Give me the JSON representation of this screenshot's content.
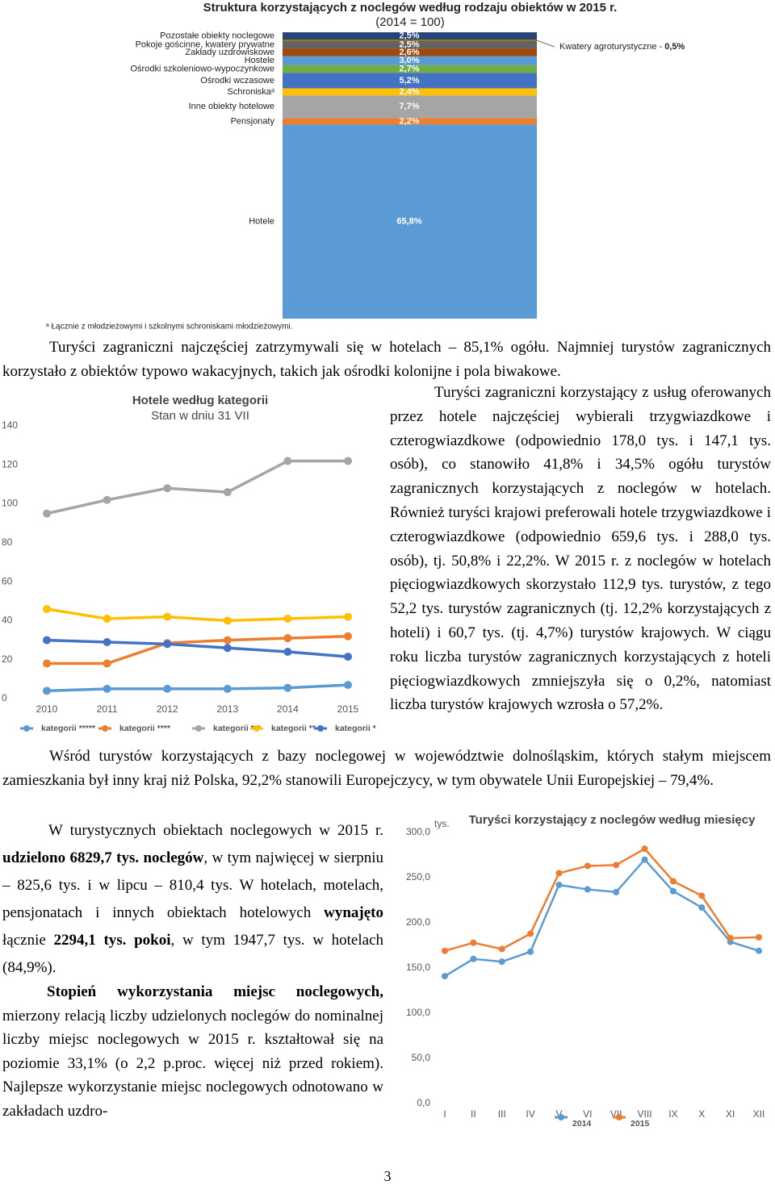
{
  "chart_data": [
    {
      "type": "stacked-bar",
      "title": "Struktura korzystających z noclegów według rodzaju obiektów w 2015 r.",
      "subtitle": "(2014 = 100)",
      "series": [
        {
          "name": "Hotele",
          "color": "#5b9bd5",
          "values": [
            65.8
          ],
          "value_labels": [
            "65,8%"
          ]
        },
        {
          "name": "Pensjonaty",
          "color": "#ed7d31",
          "values": [
            2.2
          ],
          "value_labels": [
            "2,2%"
          ]
        },
        {
          "name": "Inne obiekty hotelowe",
          "color": "#a5a5a5",
          "values": [
            7.7
          ],
          "value_labels": [
            "7,7%"
          ]
        },
        {
          "name": "Schroniskaᵃ",
          "color": "#ffc000",
          "values": [
            2.4
          ],
          "value_labels": [
            "2,4%"
          ]
        },
        {
          "name": "Ośrodki wczasowe",
          "color": "#4472c4",
          "values": [
            5.2
          ],
          "value_labels": [
            "5,2%"
          ]
        },
        {
          "name": "Ośrodki szkoleniowo-wypoczynkowe",
          "color": "#70ad47",
          "values": [
            2.7
          ],
          "value_labels": [
            "2,7%"
          ]
        },
        {
          "name": "Hostele",
          "color": "#5b9bd5",
          "values": [
            3.0
          ],
          "value_labels": [
            "3,0%"
          ]
        },
        {
          "name": "Zakłady uzdrowiskowe",
          "color": "#9e480e",
          "values": [
            2.6
          ],
          "value_labels": [
            "2,6%"
          ]
        },
        {
          "name": "Pokoje gościnne, kwatery prywatne",
          "color": "#636363",
          "values": [
            2.5
          ],
          "value_labels": [
            "2,5%"
          ]
        },
        {
          "name": "Kwatery agroturystyczne",
          "color": "#997300",
          "values": [
            0.5
          ],
          "value_labels": [
            "0,5%"
          ]
        },
        {
          "name": "Pozostałe obiekty noclegowe",
          "color": "#264478",
          "values": [
            2.5
          ],
          "value_labels": [
            "2,5%"
          ]
        }
      ],
      "footnote": "ᵃ Łącznie z młodzieżowymi i szkolnymi schroniskami młodzieżowymi."
    },
    {
      "type": "line",
      "title": "Hotele według kategorii",
      "subtitle": "Stan w dniu 31 VII",
      "categories": [
        "2010",
        "2011",
        "2012",
        "2013",
        "2014",
        "2015"
      ],
      "ylim": [
        0,
        140
      ],
      "yticks": [
        0,
        20,
        40,
        60,
        80,
        100,
        120,
        140
      ],
      "legend": "bottom",
      "series": [
        {
          "name": "kategorii *****",
          "color": "#5b9bd5",
          "values": [
            4,
            5,
            5,
            5,
            5.5,
            7
          ]
        },
        {
          "name": "kategorii ****",
          "color": "#ed7d31",
          "values": [
            18,
            18,
            28.5,
            30,
            31,
            32
          ]
        },
        {
          "name": "kategorii ***",
          "color": "#a5a5a5",
          "values": [
            95,
            102,
            108,
            106,
            122,
            122
          ]
        },
        {
          "name": "kategorii **",
          "color": "#ffc000",
          "values": [
            46,
            41,
            42,
            40,
            41,
            42
          ]
        },
        {
          "name": "kategorii *",
          "color": "#4472c4",
          "values": [
            30,
            29,
            28,
            26,
            24,
            21.5
          ]
        }
      ]
    },
    {
      "type": "line",
      "title": "Turyści korzystający z noclegów według miesięcy",
      "y_label": "tys.",
      "categories": [
        "I",
        "II",
        "III",
        "IV",
        "V",
        "VI",
        "VII",
        "VIII",
        "IX",
        "X",
        "XI",
        "XII"
      ],
      "ylim": [
        0,
        300
      ],
      "legend": "bottom",
      "yticks": [
        {
          "value": 0,
          "label": "0,0"
        },
        {
          "value": 50,
          "label": "50,0"
        },
        {
          "value": 100,
          "label": "100,0"
        },
        {
          "value": 150,
          "label": "150,0"
        },
        {
          "value": 200,
          "label": "200,0"
        },
        {
          "value": 250,
          "label": "250,0"
        },
        {
          "value": 300,
          "label": "300,0"
        }
      ],
      "series": [
        {
          "name": "2014",
          "color": "#5b9bd5",
          "values": [
            141,
            160,
            157,
            168,
            242,
            237,
            234,
            270,
            235,
            217,
            179,
            169
          ]
        },
        {
          "name": "2015",
          "color": "#ed7d31",
          "values": [
            169,
            178,
            171,
            188,
            255,
            263,
            264,
            282,
            246,
            230,
            183,
            184
          ]
        }
      ]
    }
  ],
  "text": {
    "paragraphs": [
      [
        "Turyści zagraniczni najczęściej zatrzymywali się w hotelach – 85,1% ogółu. Najmniej turystów zagranicznych korzystało z obiektów typowo wakacyjnych, takich jak ośrodki kolonijne i pola biwakowe."
      ],
      [
        "Turyści zagraniczni korzystający z usług oferowanych przez hotele najczęściej wybierali trzygwiazdkowe i czterogwiazdkowe (odpowiednio 178,0 tys. i 147,1 tys. osób), co stanowiło 41,8% i 34,5% ogółu turystów zagranicznych korzystających z noclegów w hotelach. Również turyści krajowi preferowali hotele trzygwiazdkowe i czterogwiazdkowe (odpowiednio 659,6 tys. i 288,0 tys. osób), tj. 50,8% i 22,2%. W 2015 r. z noclegów w hotelach pięciogwiazdkowych skorzystało 112,9 tys. turystów, z tego 52,2 tys. turystów zagranicznych (tj. 12,2% korzystających z hoteli) i 60,7 tys. (tj. 4,7%) turystów krajowych. W ciągu roku liczba turystów zagranicznych korzystających z hoteli pięciogwiazdkowych zmniejszyła się o 0,2%, natomiast liczba turystów krajowych wzrosła o 57,2%."
      ],
      [
        "Wśród turystów korzystających z bazy noclegowej w województwie dolnośląskim, których stałym miejscem zamieszkania był inny kraj niż Polska, 92,2% stanowili Europejczycy, w tym obywatele Unii Europejskiej – 79,4%."
      ],
      [
        "W turystycznych obiektach noclegowych w 2015 r. ",
        {
          "bold": "udzielono 6829,7 tys. noclegów"
        },
        ", w tym najwięcej w sierpniu – 825,6 tys. i w lipcu – 810,4 tys. W hotelach, motelach, pensjonatach i innych obiektach hotelowych ",
        {
          "bold": "wynajęto"
        },
        " łącznie ",
        {
          "bold": "2294,1 tys. pokoi"
        },
        ", w tym 1947,7 tys. w hotelach (84,9%)."
      ],
      [
        {
          "bold": "Stopień wykorzystania miejsc noclegowych,"
        },
        " mierzony relacją liczby udzielonych noclegów do nominalnej liczby miejsc noclegowych w 2015 r. kształtował się na poziomie 33,1% (o 2,2 p.proc. więcej niż przed rokiem). Najlepsze wykorzystanie miejsc noclegowych odnotowano w zakładach uzdro-"
      ]
    ],
    "page_number": "3"
  }
}
